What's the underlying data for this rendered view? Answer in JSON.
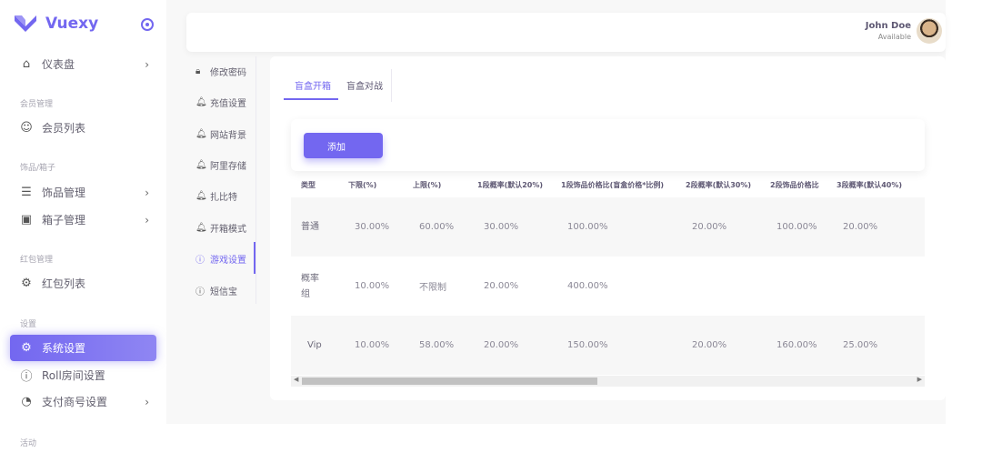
{
  "brand": {
    "name": "Vuexy",
    "color": "#7367f0"
  },
  "sidebar": {
    "dashboard": "仪表盘",
    "sections": [
      "会员管理",
      "饰品/箱子",
      "红包管理",
      "设置",
      "活动"
    ],
    "items": [
      {
        "label": "会员列表",
        "icon": "user-icon"
      },
      {
        "label": "饰品管理",
        "icon": "list-icon"
      },
      {
        "label": "箱子管理",
        "icon": "layout-icon"
      },
      {
        "label": "红包列表",
        "icon": "gear-icon"
      },
      {
        "label": "系统设置",
        "icon": "gear-icon",
        "active": true
      },
      {
        "label": "Roll房间设置",
        "icon": "info-icon"
      },
      {
        "label": "支付商号设置",
        "icon": "pie-chart-icon"
      }
    ]
  },
  "header": {
    "user_name": "John Doe",
    "user_status": "Available"
  },
  "subnav": [
    "修改密码",
    "充值设置",
    "网站背景",
    "阿里存储",
    "扎比特",
    "开箱模式",
    "游戏设置",
    "短信宝"
  ],
  "tabs": [
    "盲盒开箱",
    "盲盒对战"
  ],
  "toolbar": {
    "add_label": "添加"
  },
  "table": {
    "columns": [
      "类型",
      "下限(%)",
      "上限(%)",
      "1段概率(默认20%)",
      "1段饰品价格比(盲盒价格*比例)",
      "2段概率(默认30%)",
      "2段饰品价格比",
      "3段概率(默认40%)"
    ],
    "rows": [
      [
        "普通",
        "30.00%",
        "60.00%",
        "30.00%",
        "100.00%",
        "20.00%",
        "100.00%",
        "20.00%"
      ],
      [
        "概率组",
        "10.00%",
        "不限制",
        "20.00%",
        "400.00%",
        "",
        "",
        ""
      ],
      [
        "Vip",
        "10.00%",
        "58.00%",
        "20.00%",
        "150.00%",
        "20.00%",
        "160.00%",
        "25.00%"
      ]
    ]
  }
}
